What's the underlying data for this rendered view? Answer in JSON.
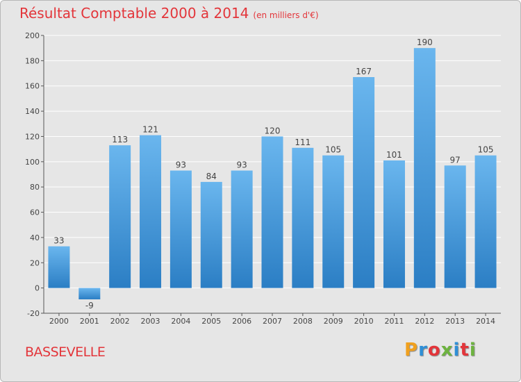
{
  "title": "Résultat Comptable 2000 à 2014",
  "unit": "(en milliers d'€)",
  "commune": "BASSEVELLE",
  "logo": {
    "text": "Proxiti",
    "colors": [
      "#f0a01e",
      "#2f8fd6",
      "#e3353a",
      "#6db33f",
      "#2f8fd6",
      "#e3353a",
      "#6db33f"
    ]
  },
  "colors": {
    "title": "#e3353a",
    "bar_top": "#6ab6ee",
    "bar_bottom": "#2b7ec4",
    "grid": "#ffffff"
  },
  "chart_data": {
    "type": "bar",
    "categories": [
      "2000",
      "2001",
      "2002",
      "2003",
      "2004",
      "2005",
      "2006",
      "2007",
      "2008",
      "2009",
      "2010",
      "2011",
      "2012",
      "2013",
      "2014"
    ],
    "values": [
      33,
      -9,
      113,
      121,
      93,
      84,
      93,
      120,
      111,
      105,
      167,
      101,
      190,
      97,
      105
    ],
    "ylim": [
      -20,
      200
    ],
    "yticks": [
      -20,
      0,
      20,
      40,
      60,
      80,
      100,
      120,
      140,
      160,
      180,
      200
    ],
    "grid": true
  }
}
